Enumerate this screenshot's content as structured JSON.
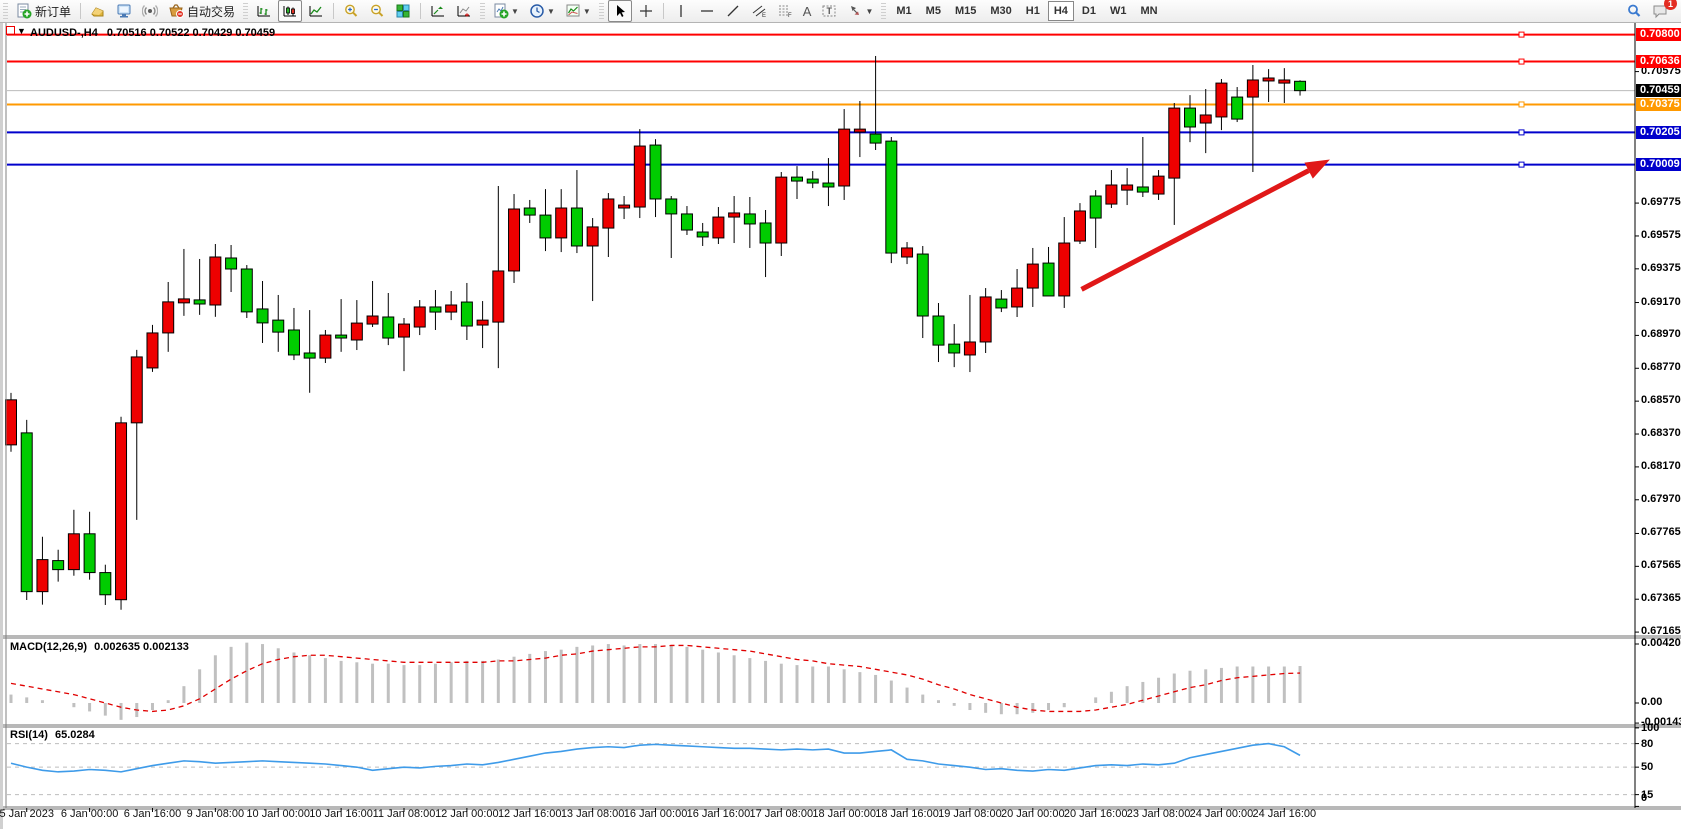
{
  "window": {
    "symbol_title": "AUDUSD-,H4",
    "ohlc_title": "0.70516 0.70522 0.70429 0.70459"
  },
  "toolbar": {
    "new_order_label": "新订单",
    "autotrade_label": "自动交易",
    "text_tool_label": "A",
    "channel_sub": "E",
    "fib_sub": "F",
    "timeframes": [
      "M1",
      "M5",
      "M15",
      "M30",
      "H1",
      "H4",
      "D1",
      "W1",
      "MN"
    ],
    "active_timeframe": "H4",
    "notification_count": "1"
  },
  "colors": {
    "bull": "#00cc00",
    "bear": "#ee0000",
    "wick": "#000000",
    "macd_hist": "#c0c0c0",
    "macd_signal": "#e00000",
    "rsi_line": "#3e9be9",
    "arrow": "#e01818",
    "line_red": "#ff0000",
    "line_orange": "#ff9900",
    "line_blue": "#0000cc",
    "line_current": "#bbbbbb"
  },
  "price_axis": {
    "ticks": [
      [
        "0.70575",
        0.70575
      ],
      [
        "0.69775",
        0.69775
      ],
      [
        "0.69575",
        0.69575
      ],
      [
        "0.69375",
        0.69375
      ],
      [
        "0.69170",
        0.6917
      ],
      [
        "0.68970",
        0.6897
      ],
      [
        "0.68770",
        0.6877
      ],
      [
        "0.68570",
        0.6857
      ],
      [
        "0.68370",
        0.6837
      ],
      [
        "0.68170",
        0.6817
      ],
      [
        "0.67970",
        0.6797
      ],
      [
        "0.67765",
        0.67765
      ],
      [
        "0.67565",
        0.67565
      ],
      [
        "0.67365",
        0.67365
      ],
      [
        "0.67165",
        0.67165
      ]
    ],
    "tags": [
      {
        "label": "0.70800",
        "price": 0.708,
        "bg": "#ff0000"
      },
      {
        "label": "0.70636",
        "price": 0.70636,
        "bg": "#ff0000"
      },
      {
        "label": "0.70459",
        "price": 0.70459,
        "bg": "#000000"
      },
      {
        "label": "0.70375",
        "price": 0.70375,
        "bg": "#ff9900"
      },
      {
        "label": "0.70205",
        "price": 0.70205,
        "bg": "#0000cc"
      },
      {
        "label": "0.70009",
        "price": 0.70009,
        "bg": "#0000cc"
      }
    ]
  },
  "hlines": [
    {
      "price": 0.708,
      "color": "#ff0000",
      "w": 2,
      "marker": true
    },
    {
      "price": 0.70636,
      "color": "#ff0000",
      "w": 2,
      "marker": true
    },
    {
      "price": 0.70459,
      "color": "#bbbbbb",
      "w": 1,
      "marker": false
    },
    {
      "price": 0.70375,
      "color": "#ff9900",
      "w": 2,
      "marker": true
    },
    {
      "price": 0.70205,
      "color": "#0000cc",
      "w": 2,
      "marker": true
    },
    {
      "price": 0.70009,
      "color": "#0000cc",
      "w": 2,
      "marker": true
    }
  ],
  "panels": {
    "macd": {
      "title": "MACD(12,26,9)",
      "values": "0.002635 0.002133",
      "axis": [
        [
          "0.004204",
          0.004204
        ],
        [
          "0.00",
          0
        ],
        [
          "-0.001431",
          -0.001431
        ]
      ]
    },
    "rsi": {
      "title": "RSI(14)",
      "value": "65.0284",
      "axis": [
        [
          "100",
          100
        ],
        [
          "80",
          80
        ],
        [
          "50",
          50
        ],
        [
          "15",
          15
        ],
        [
          "0",
          0
        ]
      ],
      "grid": [
        80,
        50,
        15
      ]
    }
  },
  "chart_data": {
    "type": "candlestick",
    "symbol": "AUDUSD",
    "period": "H4",
    "ylim": [
      0.6714,
      0.7086
    ],
    "candles": [
      [
        0.68578,
        0.6862,
        0.68262,
        0.68304
      ],
      [
        0.67411,
        0.68456,
        0.6736,
        0.68377
      ],
      [
        0.67606,
        0.67745,
        0.67332,
        0.67411
      ],
      [
        0.67545,
        0.67666,
        0.67472,
        0.676
      ],
      [
        0.67763,
        0.67909,
        0.67508,
        0.67545
      ],
      [
        0.67527,
        0.67897,
        0.67484,
        0.67763
      ],
      [
        0.67392,
        0.67575,
        0.6733,
        0.67527
      ],
      [
        0.68438,
        0.68475,
        0.67301,
        0.67362
      ],
      [
        0.68839,
        0.68882,
        0.67848,
        0.68438
      ],
      [
        0.68985,
        0.69034,
        0.68748,
        0.68772
      ],
      [
        0.69174,
        0.69295,
        0.6887,
        0.68985
      ],
      [
        0.69192,
        0.69496,
        0.69089,
        0.69168
      ],
      [
        0.69161,
        0.69435,
        0.69095,
        0.69186
      ],
      [
        0.69447,
        0.69526,
        0.69083,
        0.69155
      ],
      [
        0.69374,
        0.6952,
        0.69234,
        0.69441
      ],
      [
        0.69113,
        0.69398,
        0.69076,
        0.69374
      ],
      [
        0.69046,
        0.69301,
        0.68924,
        0.69131
      ],
      [
        0.6899,
        0.69216,
        0.6887,
        0.69063
      ],
      [
        0.68851,
        0.69137,
        0.6882,
        0.69003
      ],
      [
        0.68832,
        0.69124,
        0.68621,
        0.68863
      ],
      [
        0.68972,
        0.69003,
        0.68802,
        0.68832
      ],
      [
        0.68954,
        0.69191,
        0.6887,
        0.68972
      ],
      [
        0.69045,
        0.69185,
        0.68881,
        0.68942
      ],
      [
        0.69088,
        0.69301,
        0.69021,
        0.69039
      ],
      [
        0.68954,
        0.69228,
        0.68911,
        0.69082
      ],
      [
        0.69039,
        0.69076,
        0.68753,
        0.6896
      ],
      [
        0.69143,
        0.69185,
        0.68972,
        0.69021
      ],
      [
        0.69112,
        0.69246,
        0.69003,
        0.69143
      ],
      [
        0.69155,
        0.6924,
        0.69063,
        0.69112
      ],
      [
        0.69027,
        0.69289,
        0.68942,
        0.69173
      ],
      [
        0.69063,
        0.69179,
        0.68893,
        0.69033
      ],
      [
        0.69362,
        0.69879,
        0.68771,
        0.69051
      ],
      [
        0.69739,
        0.6983,
        0.69289,
        0.69362
      ],
      [
        0.69702,
        0.69794,
        0.69654,
        0.69745
      ],
      [
        0.69563,
        0.6986,
        0.69483,
        0.69702
      ],
      [
        0.69745,
        0.6986,
        0.69477,
        0.69563
      ],
      [
        0.69514,
        0.69976,
        0.69471,
        0.69745
      ],
      [
        0.6963,
        0.69684,
        0.69179,
        0.69514
      ],
      [
        0.698,
        0.69836,
        0.69447,
        0.69623
      ],
      [
        0.69763,
        0.69818,
        0.69678,
        0.69745
      ],
      [
        0.70122,
        0.70225,
        0.69684,
        0.69751
      ],
      [
        0.698,
        0.70164,
        0.6969,
        0.70128
      ],
      [
        0.69709,
        0.69818,
        0.69441,
        0.698
      ],
      [
        0.69611,
        0.69757,
        0.69581,
        0.69709
      ],
      [
        0.69569,
        0.69654,
        0.69514,
        0.69599
      ],
      [
        0.6969,
        0.69751,
        0.69526,
        0.69563
      ],
      [
        0.69715,
        0.69818,
        0.69532,
        0.6969
      ],
      [
        0.69648,
        0.69812,
        0.69502,
        0.69709
      ],
      [
        0.69532,
        0.69733,
        0.69325,
        0.69654
      ],
      [
        0.69933,
        0.69964,
        0.69453,
        0.69532
      ],
      [
        0.69909,
        0.7,
        0.698,
        0.69933
      ],
      [
        0.69897,
        0.6997,
        0.69866,
        0.69921
      ],
      [
        0.69873,
        0.70049,
        0.69757,
        0.69897
      ],
      [
        0.70225,
        0.70347,
        0.69794,
        0.69879
      ],
      [
        0.70225,
        0.70396,
        0.70055,
        0.70207
      ],
      [
        0.7014,
        0.7067,
        0.70098,
        0.70195
      ],
      [
        0.69471,
        0.70177,
        0.6941,
        0.70152
      ],
      [
        0.69502,
        0.69538,
        0.69404,
        0.69447
      ],
      [
        0.69088,
        0.69514,
        0.68954,
        0.69465
      ],
      [
        0.68911,
        0.69167,
        0.68808,
        0.69088
      ],
      [
        0.68863,
        0.69039,
        0.68777,
        0.68917
      ],
      [
        0.6893,
        0.69216,
        0.68747,
        0.68851
      ],
      [
        0.69204,
        0.69258,
        0.68863,
        0.6893
      ],
      [
        0.69137,
        0.69246,
        0.69112,
        0.69191
      ],
      [
        0.69258,
        0.69374,
        0.69082,
        0.69143
      ],
      [
        0.69404,
        0.69502,
        0.69143,
        0.69258
      ],
      [
        0.6921,
        0.69508,
        0.6921,
        0.6941
      ],
      [
        0.69532,
        0.6969,
        0.69137,
        0.6921
      ],
      [
        0.69727,
        0.69775,
        0.69526,
        0.69544
      ],
      [
        0.69684,
        0.69854,
        0.69502,
        0.69818
      ],
      [
        0.69885,
        0.69976,
        0.69745,
        0.69769
      ],
      [
        0.69885,
        0.69988,
        0.69763,
        0.69854
      ],
      [
        0.69842,
        0.70177,
        0.69812,
        0.69873
      ],
      [
        0.69939,
        0.69976,
        0.69794,
        0.6983
      ],
      [
        0.70353,
        0.70384,
        0.69642,
        0.69927
      ],
      [
        0.70238,
        0.70432,
        0.70146,
        0.70353
      ],
      [
        0.70311,
        0.70469,
        0.70079,
        0.70262
      ],
      [
        0.70505,
        0.7053,
        0.70219,
        0.70299
      ],
      [
        0.70286,
        0.70481,
        0.70268,
        0.7042
      ],
      [
        0.70524,
        0.70615,
        0.69964,
        0.7042
      ],
      [
        0.70536,
        0.7059,
        0.7039,
        0.70518
      ],
      [
        0.70524,
        0.70596,
        0.70384,
        0.70505
      ],
      [
        0.70459,
        0.70522,
        0.70429,
        0.70516
      ]
    ],
    "time_labels": [
      [
        1,
        "5 Jan 2023"
      ],
      [
        5,
        "6 Jan 00:00"
      ],
      [
        9,
        "6 Jan 16:00"
      ],
      [
        13,
        "9 Jan 08:00"
      ],
      [
        17,
        "10 Jan 00:00"
      ],
      [
        21,
        "10 Jan 16:00"
      ],
      [
        25,
        "11 Jan 08:00"
      ],
      [
        29,
        "12 Jan 00:00"
      ],
      [
        33,
        "12 Jan 16:00"
      ],
      [
        37,
        "13 Jan 08:00"
      ],
      [
        41,
        "16 Jan 00:00"
      ],
      [
        45,
        "16 Jan 16:00"
      ],
      [
        49,
        "17 Jan 08:00"
      ],
      [
        53,
        "18 Jan 00:00"
      ],
      [
        57,
        "18 Jan 16:00"
      ],
      [
        61,
        "19 Jan 08:00"
      ],
      [
        65,
        "20 Jan 00:00"
      ],
      [
        69,
        "20 Jan 16:00"
      ],
      [
        73,
        "23 Jan 08:00"
      ],
      [
        77,
        "24 Jan 00:00"
      ],
      [
        81,
        "24 Jan 16:00"
      ]
    ],
    "macd_hist": [
      0.0006,
      0.0004,
      0.0002,
      0.0,
      -0.0003,
      -0.0006,
      -0.0009,
      -0.0012,
      -0.001,
      -0.0005,
      0.0002,
      0.0012,
      0.0024,
      0.0034,
      0.004,
      0.0043,
      0.0042,
      0.0039,
      0.0036,
      0.0034,
      0.0032,
      0.003,
      0.0029,
      0.0028,
      0.0028,
      0.0027,
      0.0027,
      0.0028,
      0.0029,
      0.003,
      0.003,
      0.0031,
      0.0033,
      0.0035,
      0.0037,
      0.0038,
      0.004,
      0.0041,
      0.0042,
      0.0041,
      0.0042,
      0.0042,
      0.0041,
      0.004,
      0.0038,
      0.0036,
      0.0034,
      0.0032,
      0.003,
      0.0028,
      0.0027,
      0.0026,
      0.0026,
      0.0024,
      0.0022,
      0.002,
      0.0016,
      0.0011,
      0.0006,
      0.0002,
      -0.0002,
      -0.0005,
      -0.0007,
      -0.0008,
      -0.0008,
      -0.0007,
      -0.0005,
      -0.0003,
      0.0,
      0.0004,
      0.0008,
      0.0012,
      0.0015,
      0.0018,
      0.0021,
      0.0023,
      0.0024,
      0.0025,
      0.0026,
      0.0026,
      0.0026,
      0.0026,
      0.002635
    ],
    "macd_signal": [
      0.0014,
      0.0012,
      0.001,
      0.0008,
      0.0006,
      0.0003,
      0.0,
      -0.0003,
      -0.0005,
      -0.0006,
      -0.0005,
      -0.0002,
      0.0003,
      0.001,
      0.0017,
      0.0023,
      0.0028,
      0.0031,
      0.0033,
      0.0034,
      0.0034,
      0.0033,
      0.0032,
      0.0031,
      0.003,
      0.0029,
      0.0029,
      0.0029,
      0.0029,
      0.0029,
      0.0029,
      0.003,
      0.003,
      0.0031,
      0.0032,
      0.0034,
      0.0035,
      0.0037,
      0.0038,
      0.0039,
      0.004,
      0.004,
      0.0041,
      0.0041,
      0.004,
      0.0039,
      0.0038,
      0.0037,
      0.0035,
      0.0033,
      0.0031,
      0.003,
      0.0028,
      0.0027,
      0.0026,
      0.0024,
      0.0022,
      0.002,
      0.0017,
      0.0013,
      0.001,
      0.0006,
      0.0003,
      0.0,
      -0.0003,
      -0.0005,
      -0.0006,
      -0.0006,
      -0.0006,
      -0.0005,
      -0.0003,
      -0.0001,
      0.0002,
      0.0005,
      0.0008,
      0.0011,
      0.0013,
      0.0016,
      0.0018,
      0.0019,
      0.002,
      0.0021,
      0.002133
    ],
    "rsi": [
      55,
      50,
      46,
      44,
      45,
      47,
      46,
      44,
      48,
      52,
      55,
      58,
      57,
      55,
      56,
      57,
      58,
      57,
      56,
      55,
      54,
      52,
      50,
      46,
      48,
      50,
      49,
      51,
      52,
      54,
      53,
      56,
      60,
      64,
      68,
      70,
      73,
      75,
      76,
      75,
      78,
      79,
      78,
      77,
      76,
      75,
      74,
      74,
      73,
      72,
      73,
      72,
      73,
      68,
      68,
      70,
      72,
      60,
      58,
      54,
      52,
      50,
      47,
      48,
      46,
      45,
      47,
      46,
      49,
      52,
      53,
      52,
      54,
      53,
      55,
      62,
      66,
      70,
      74,
      78,
      80,
      76,
      65
    ],
    "trend_arrow": {
      "from_bar": 68.1,
      "from_price": 0.6925,
      "to_bar": 83.9,
      "to_price": 0.7004
    }
  }
}
